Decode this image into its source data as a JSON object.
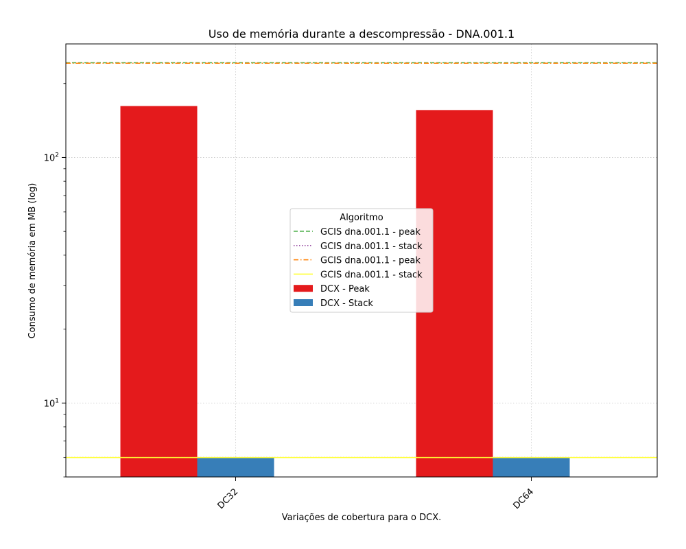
{
  "chart_data": {
    "type": "bar",
    "title": "Uso de memória durante a descompressão -  DNA.001.1",
    "xlabel": "Variações de cobertura para o DCX.",
    "ylabel": "Consumo de memória em MB (log)",
    "yscale": "log",
    "ylim": [
      5,
      290
    ],
    "ytick_labels": [
      "10^1",
      "10^2"
    ],
    "categories": [
      "DC32",
      "DC64"
    ],
    "series": [
      {
        "name": "DCX - Peak",
        "values": [
          162,
          156
        ],
        "color": "#e41a1c"
      },
      {
        "name": "DCX - Stack",
        "values": [
          6.0,
          6.0
        ],
        "color": "#377eb8"
      }
    ],
    "hlines": [
      {
        "name": "GCIS dna.001.1 - peak",
        "value": 243,
        "color": "#4daf4a",
        "style": "dashed"
      },
      {
        "name": "GCIS dna.001.1 - stack",
        "value": 6.0,
        "color": "#984ea3",
        "style": "dotted"
      },
      {
        "name": "GCIS dna.001.1 - peak",
        "value": 242,
        "color": "#ff7f00",
        "style": "dashdot"
      },
      {
        "name": "GCIS dna.001.1 - stack",
        "value": 6.0,
        "color": "#ffff33",
        "style": "solid"
      }
    ],
    "legend": {
      "title": "Algoritmo",
      "location": "center",
      "entries": [
        {
          "label": "GCIS dna.001.1 - peak",
          "kind": "line",
          "color": "#4daf4a",
          "style": "dashed"
        },
        {
          "label": "GCIS dna.001.1 - stack",
          "kind": "line",
          "color": "#984ea3",
          "style": "dotted"
        },
        {
          "label": "GCIS dna.001.1 - peak",
          "kind": "line",
          "color": "#ff7f00",
          "style": "dashdot"
        },
        {
          "label": "GCIS dna.001.1 - stack",
          "kind": "line",
          "color": "#ffff33",
          "style": "solid"
        },
        {
          "label": "DCX - Peak",
          "kind": "patch",
          "color": "#e41a1c"
        },
        {
          "label": "DCX - Stack",
          "kind": "patch",
          "color": "#377eb8"
        }
      ]
    },
    "grid": true
  }
}
